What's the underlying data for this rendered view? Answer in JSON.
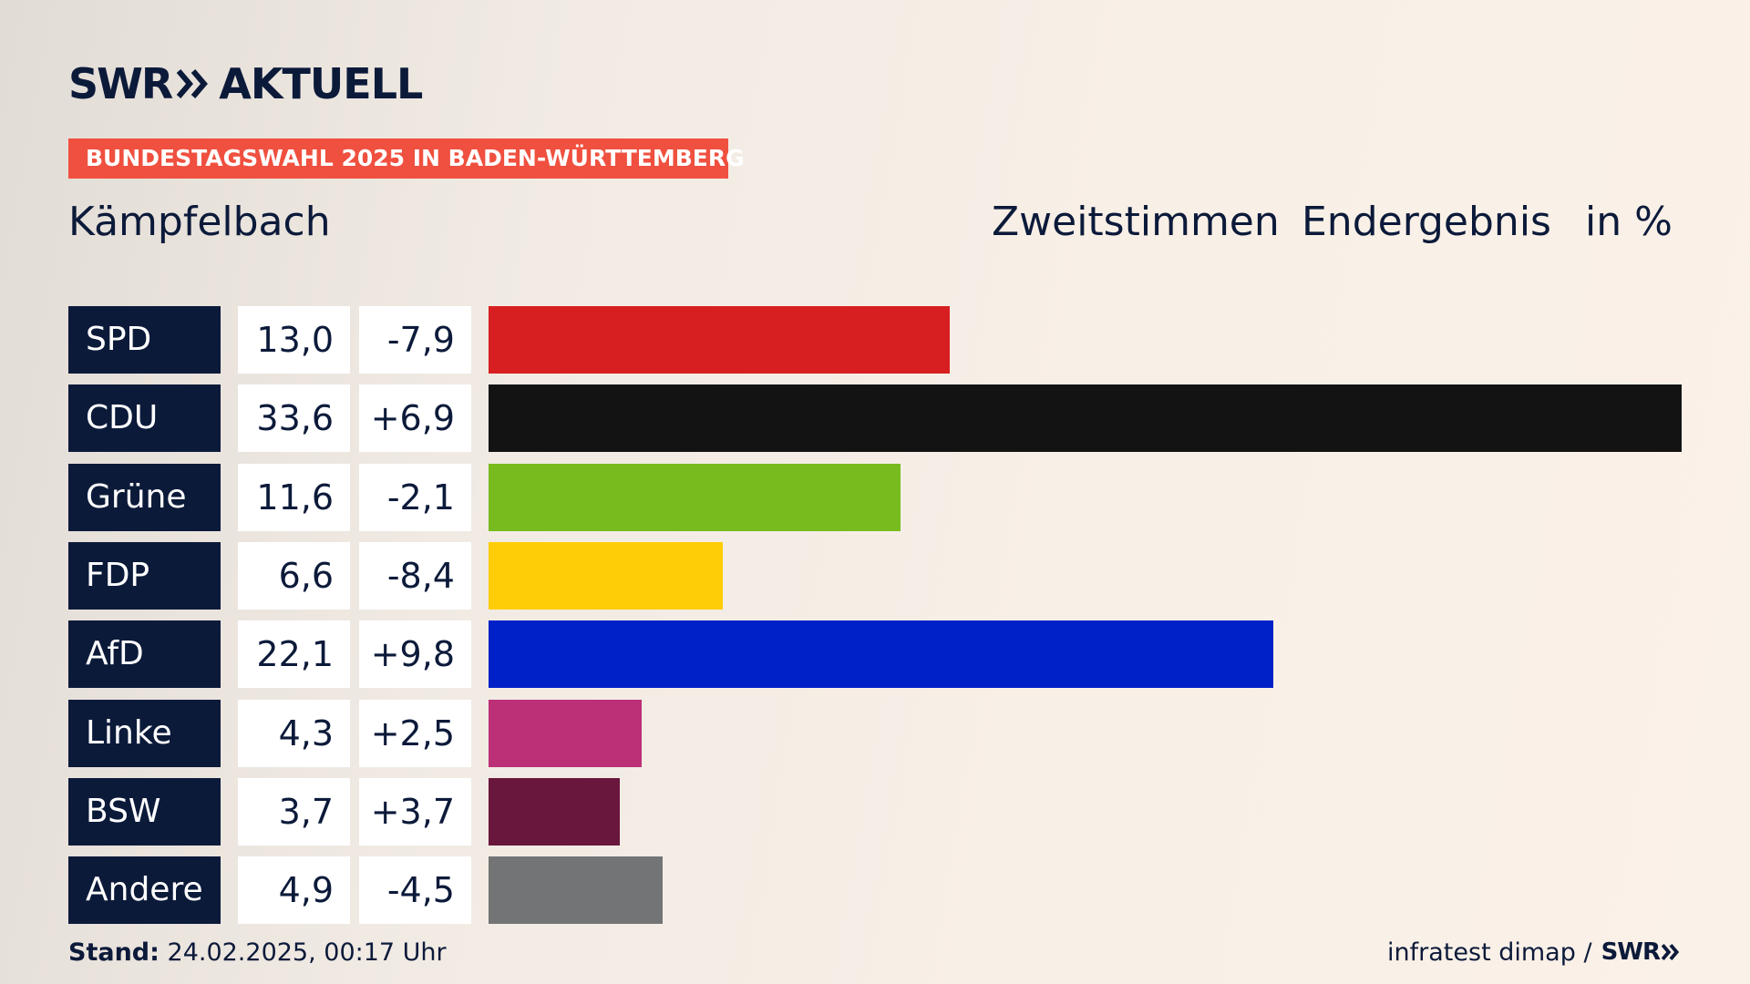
{
  "logo": {
    "brand": "SWR",
    "product": "AKTUELL"
  },
  "tag": "BUNDESTAGSWAHL 2025 IN BADEN-WÜRTTEMBERG",
  "place": "Kämpfelbach",
  "header": {
    "vote_type": "Zweitstimmen",
    "status": "Endergebnis",
    "unit": "in %"
  },
  "colors": {
    "navy": "#0c1a3a",
    "tag": "#f0503f"
  },
  "chart_data": {
    "type": "bar",
    "orientation": "horizontal",
    "categories": [
      "SPD",
      "CDU",
      "Grüne",
      "FDP",
      "AfD",
      "Linke",
      "BSW",
      "Andere"
    ],
    "values": [
      13.0,
      33.6,
      11.6,
      6.6,
      22.1,
      4.3,
      3.7,
      4.9
    ],
    "value_labels": [
      "13,0",
      "33,6",
      "11,6",
      "6,6",
      "22,1",
      "4,3",
      "3,7",
      "4,9"
    ],
    "change_labels": [
      "-7,9",
      "+6,9",
      "-2,1",
      "-8,4",
      "+9,8",
      "+2,5",
      "+3,7",
      "-4,5"
    ],
    "colors": [
      "#d71f22",
      "#131313",
      "#78bb1e",
      "#ffcd07",
      "#0021c8",
      "#bc3077",
      "#6a173d",
      "#737475"
    ],
    "xlim": [
      0,
      33.6
    ]
  },
  "footer": {
    "stand_label": "Stand:",
    "stand_value": "24.02.2025, 00:17 Uhr",
    "source": "infratest dimap /",
    "source_brand": "SWR"
  }
}
